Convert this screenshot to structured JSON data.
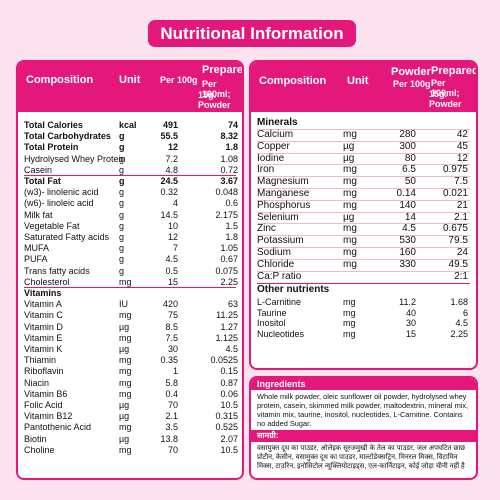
{
  "title": "Nutritional Information",
  "left": {
    "headers": {
      "composition": "Composition",
      "unit": "Unit",
      "per100g": "Per 100g",
      "prepared1": "Prepared",
      "prepared2": "Per 100ml;",
      "prepared3": "15g. Powder"
    },
    "rows": [
      {
        "name": "Total Calories",
        "unit": "kcal",
        "v1": "491",
        "v2": "74",
        "bold": true
      },
      {
        "name": "Total Carbohydrates",
        "unit": "g",
        "v1": "55.5",
        "v2": "8.32",
        "bold": true
      },
      {
        "name": "Total Protein",
        "unit": "g",
        "v1": "12",
        "v2": "1.8",
        "bold": true
      },
      {
        "name": "Hydrolysed Whey Protein",
        "unit": "g",
        "v1": "7.2",
        "v2": "1.08",
        "bold": false
      },
      {
        "name": "Casein",
        "unit": "g",
        "v1": "4.8",
        "v2": "0.72",
        "bold": false
      },
      {
        "name": "Total Fat",
        "unit": "g",
        "v1": "24.5",
        "v2": "3.67",
        "bold": true
      },
      {
        "name": "(w3)- linolenic acid",
        "unit": "g",
        "v1": "0.32",
        "v2": "0.048",
        "bold": false
      },
      {
        "name": "(w6)- linoleic acid",
        "unit": "g",
        "v1": "4",
        "v2": "0.6",
        "bold": false
      },
      {
        "name": "Milk fat",
        "unit": "g",
        "v1": "14.5",
        "v2": "2.175",
        "bold": false
      },
      {
        "name": "Vegetable Fat",
        "unit": "g",
        "v1": "10",
        "v2": "1.5",
        "bold": false
      },
      {
        "name": "Saturated Fatty acids",
        "unit": "g",
        "v1": "12",
        "v2": "1.8",
        "bold": false
      },
      {
        "name": "MUFA",
        "unit": "g",
        "v1": "7",
        "v2": "1.05",
        "bold": false
      },
      {
        "name": "PUFA",
        "unit": "g",
        "v1": "4.5",
        "v2": "0.67",
        "bold": false
      },
      {
        "name": "Trans fatty acids",
        "unit": "g",
        "v1": "0.5",
        "v2": "0.075",
        "bold": false
      },
      {
        "name": "Cholesterol",
        "unit": "mg",
        "v1": "15",
        "v2": "2.25",
        "bold": false
      },
      {
        "name": "Vitamins",
        "unit": "",
        "v1": "",
        "v2": "",
        "bold": true
      },
      {
        "name": "Vitamin A",
        "unit": "IU",
        "v1": "420",
        "v2": "63",
        "bold": false
      },
      {
        "name": "Vitamin C",
        "unit": "mg",
        "v1": "75",
        "v2": "11.25",
        "bold": false
      },
      {
        "name": "Vitamin D",
        "unit": "µg",
        "v1": "8.5",
        "v2": "1.27",
        "bold": false
      },
      {
        "name": "Vitamin E",
        "unit": "mg",
        "v1": "7.5",
        "v2": "1.125",
        "bold": false
      },
      {
        "name": "Vitamin K",
        "unit": "µg",
        "v1": "30",
        "v2": "4.5",
        "bold": false
      },
      {
        "name": "Thiamin",
        "unit": "mg",
        "v1": "0.35",
        "v2": "0.0525",
        "bold": false
      },
      {
        "name": "Riboflavin",
        "unit": "mg",
        "v1": "1",
        "v2": "0.15",
        "bold": false
      },
      {
        "name": "Niacin",
        "unit": "mg",
        "v1": "5.8",
        "v2": "0.87",
        "bold": false
      },
      {
        "name": "Vitamin B6",
        "unit": "mg",
        "v1": "0.4",
        "v2": "0.06",
        "bold": false
      },
      {
        "name": "Folic Acid",
        "unit": "µg",
        "v1": "70",
        "v2": "10.5",
        "bold": false
      },
      {
        "name": "Vitamin B12",
        "unit": "µg",
        "v1": "2.1",
        "v2": "0.315",
        "bold": false
      },
      {
        "name": "Pantothenic Acid",
        "unit": "mg",
        "v1": "3.5",
        "v2": "0.525",
        "bold": false
      },
      {
        "name": "Biotin",
        "unit": "µg",
        "v1": "13.8",
        "v2": "2.07",
        "bold": false
      },
      {
        "name": "Choline",
        "unit": "mg",
        "v1": "70",
        "v2": "10.5",
        "bold": false
      }
    ]
  },
  "right": {
    "headers": {
      "composition": "Composition",
      "unit": "Unit",
      "powder1": "Powder",
      "powder2": "Per 100g",
      "prepared1": "Prepared",
      "prepared2": "Per 100ml;",
      "prepared3": "15g. Powder"
    },
    "minerals_title": "Minerals",
    "minerals": [
      {
        "name": "Calcium",
        "unit": "mg",
        "v1": "280",
        "v2": "42"
      },
      {
        "name": "Copper",
        "unit": "µg",
        "v1": "300",
        "v2": "45"
      },
      {
        "name": "Iodine",
        "unit": "µg",
        "v1": "80",
        "v2": "12"
      },
      {
        "name": "Iron",
        "unit": "mg",
        "v1": "6.5",
        "v2": "0.975"
      },
      {
        "name": "Magnesium",
        "unit": "mg",
        "v1": "50",
        "v2": "7.5"
      },
      {
        "name": "Manganese",
        "unit": "mg",
        "v1": "0.14",
        "v2": "0.021"
      },
      {
        "name": "Phosphorus",
        "unit": "mg",
        "v1": "140",
        "v2": "21"
      },
      {
        "name": "Selenium",
        "unit": "µg",
        "v1": "14",
        "v2": "2.1"
      },
      {
        "name": "Zinc",
        "unit": "mg",
        "v1": "4.5",
        "v2": "0.675"
      },
      {
        "name": "Potassium",
        "unit": "mg",
        "v1": "530",
        "v2": "79.5"
      },
      {
        "name": "Sodium",
        "unit": "mg",
        "v1": "160",
        "v2": "24"
      },
      {
        "name": "Chloride",
        "unit": "mg",
        "v1": "330",
        "v2": "49.5"
      },
      {
        "name": "Ca:P ratio",
        "unit": "",
        "v1": "",
        "v2": "2:1"
      }
    ],
    "other_title": "Other nutrients",
    "other": [
      {
        "name": "L-Carnitine",
        "unit": "mg",
        "v1": "11.2",
        "v2": "1.68"
      },
      {
        "name": "Taurine",
        "unit": "mg",
        "v1": "40",
        "v2": "6"
      },
      {
        "name": "Inositol",
        "unit": "mg",
        "v1": "30",
        "v2": "4.5"
      },
      {
        "name": "Nucleotides",
        "unit": "mg",
        "v1": "15",
        "v2": "2.25"
      }
    ]
  },
  "ingredients": {
    "title": "Ingredients",
    "text": "Whole milk powder, oleic sunflower oil powder, hydrolysed whey protein, casein, skimmed milk powder, maltodextrin, mineral mix, vitamin mix, taurine, inositol, nucleotides, L-Carnitine. Contains no added Sugar.",
    "hindi_title": "सामग्री:",
    "hindi_text": "वसायुक्त दूध का पाउडर, ओलेइक सूरजमुखी के तेल का पाउडर, जल अपघटित छाछ प्रोटीन, केसीन, वसामुक्त दूध का पाउडर, माल्टोडेक्सट्रिन, मिनरल मिक्स, विटामिन मिक्स, टाउरिन, इनोसिटोल न्यूक्लियोटाइड्स, एल-कार्निटाइन, कोई जोड़ा चीनी नहीं है"
  }
}
